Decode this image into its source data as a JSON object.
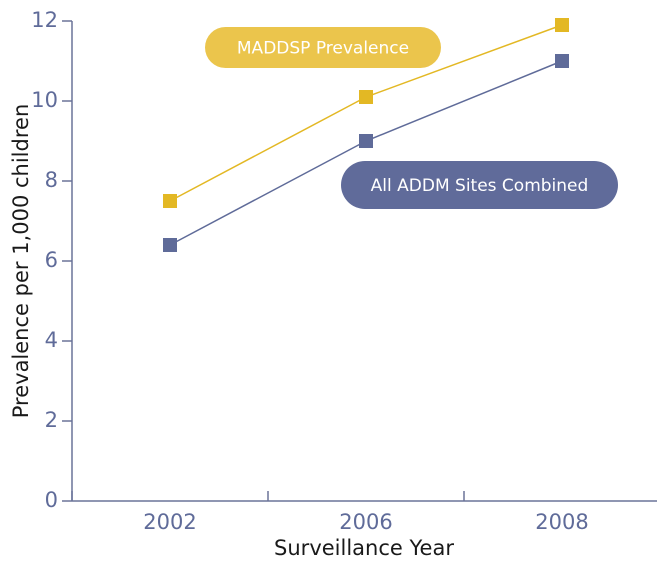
{
  "chart_data": {
    "type": "line",
    "categories": [
      "2002",
      "2006",
      "2008"
    ],
    "series": [
      {
        "name": "MADDSP Prevalence",
        "color": "#e3b824",
        "values": [
          7.5,
          10.1,
          11.9
        ]
      },
      {
        "name": "All ADDM Sites Combined",
        "color": "#5f6b99",
        "values": [
          6.4,
          9.0,
          11.0
        ]
      }
    ],
    "ylim": [
      0,
      12
    ],
    "yticks": [
      0,
      2,
      4,
      6,
      8,
      10,
      12
    ],
    "x_label": "Surveillance Year",
    "y_label": "Prevalence per 1,000 children"
  }
}
